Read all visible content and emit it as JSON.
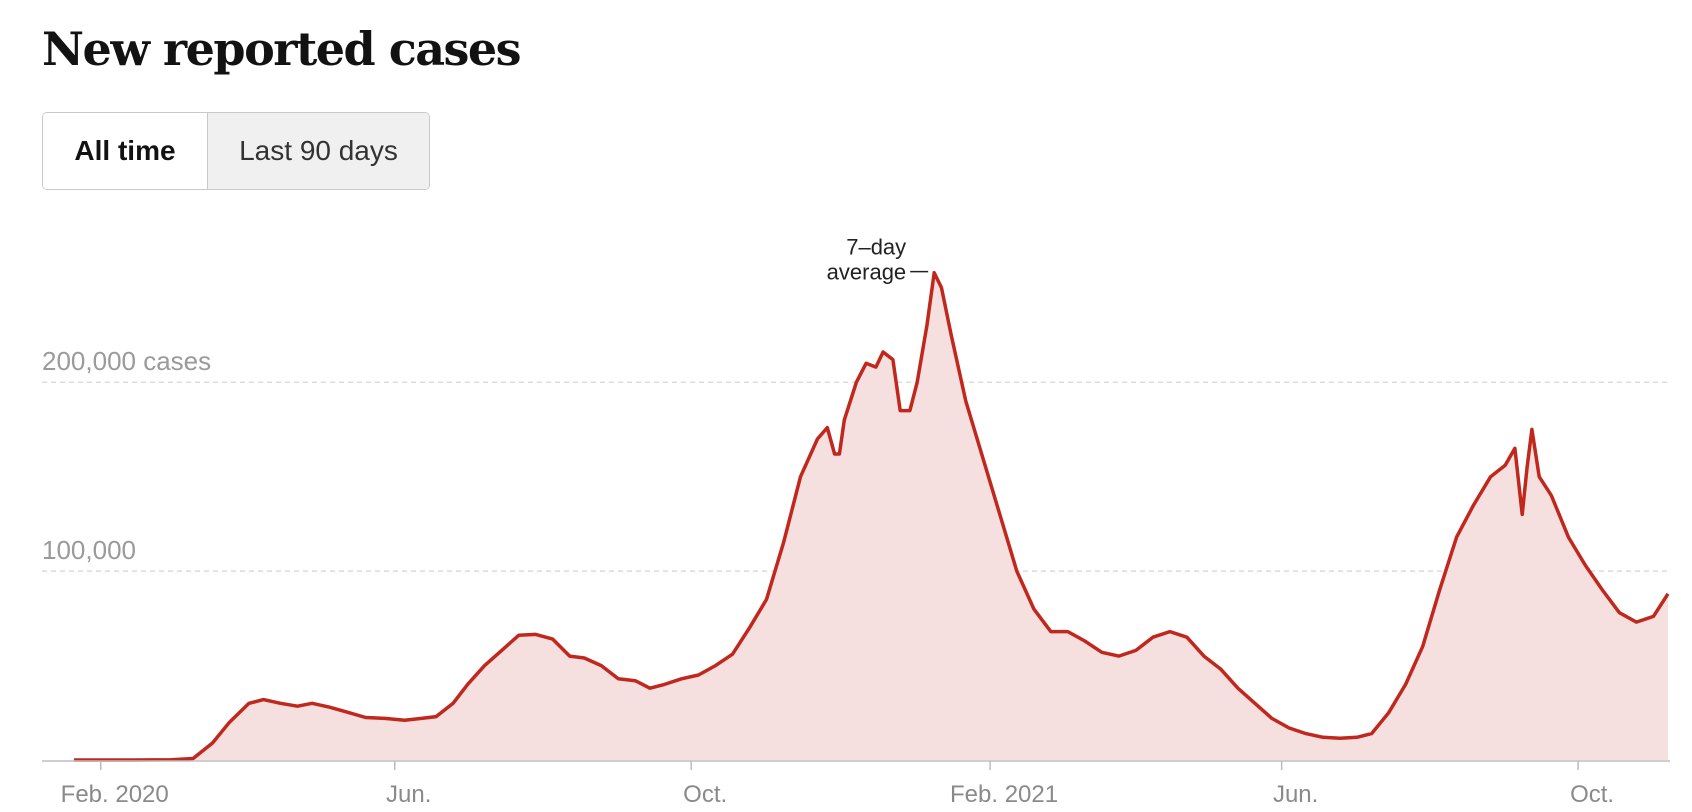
{
  "header": {
    "title": "New reported cases"
  },
  "toggle": {
    "all_time": "All time",
    "last_90_days": "Last 90 days",
    "selected": "All time"
  },
  "colors": {
    "line": "#c0281e",
    "area": "#f6dfdf",
    "grid": "#dcdcdc",
    "axis": "#bdbdbd"
  },
  "chart_data": {
    "type": "area",
    "title": "New reported cases",
    "annotation": {
      "line1": "7–day",
      "line2": "average"
    },
    "y_ticks": [
      {
        "value": 200000,
        "label": "200,000 cases"
      },
      {
        "value": 100000,
        "label": "100,000"
      }
    ],
    "x_ticks": [
      {
        "date": "2020-02-01",
        "label": "Feb. 2020"
      },
      {
        "date": "2020-06-01",
        "label": "Jun."
      },
      {
        "date": "2020-10-01",
        "label": "Oct."
      },
      {
        "date": "2021-02-01",
        "label": "Feb. 2021"
      },
      {
        "date": "2021-06-01",
        "label": "Jun."
      },
      {
        "date": "2021-10-01",
        "label": "Oct."
      }
    ],
    "xlim": [
      "2020-01-21",
      "2021-11-07"
    ],
    "ylim": [
      0,
      270000
    ],
    "grid": true,
    "series": [
      {
        "name": "7–day average",
        "points": [
          [
            "2020-01-21",
            0
          ],
          [
            "2020-02-15",
            0
          ],
          [
            "2020-03-01",
            100
          ],
          [
            "2020-03-10",
            800
          ],
          [
            "2020-03-18",
            9000
          ],
          [
            "2020-03-25",
            20000
          ],
          [
            "2020-04-02",
            30000
          ],
          [
            "2020-04-08",
            32000
          ],
          [
            "2020-04-15",
            30000
          ],
          [
            "2020-04-22",
            28500
          ],
          [
            "2020-04-28",
            30000
          ],
          [
            "2020-05-05",
            28000
          ],
          [
            "2020-05-12",
            25500
          ],
          [
            "2020-05-20",
            22500
          ],
          [
            "2020-05-28",
            22000
          ],
          [
            "2020-06-05",
            21000
          ],
          [
            "2020-06-12",
            22000
          ],
          [
            "2020-06-18",
            23000
          ],
          [
            "2020-06-25",
            30000
          ],
          [
            "2020-07-01",
            40000
          ],
          [
            "2020-07-08",
            50000
          ],
          [
            "2020-07-15",
            58000
          ],
          [
            "2020-07-22",
            66000
          ],
          [
            "2020-07-29",
            66500
          ],
          [
            "2020-08-05",
            64000
          ],
          [
            "2020-08-12",
            55000
          ],
          [
            "2020-08-18",
            54000
          ],
          [
            "2020-08-25",
            50000
          ],
          [
            "2020-09-01",
            43000
          ],
          [
            "2020-09-08",
            42000
          ],
          [
            "2020-09-14",
            38000
          ],
          [
            "2020-09-20",
            40000
          ],
          [
            "2020-09-27",
            43000
          ],
          [
            "2020-10-04",
            45000
          ],
          [
            "2020-10-11",
            50000
          ],
          [
            "2020-10-18",
            56000
          ],
          [
            "2020-10-25",
            70000
          ],
          [
            "2020-11-01",
            85000
          ],
          [
            "2020-11-08",
            115000
          ],
          [
            "2020-11-15",
            150000
          ],
          [
            "2020-11-22",
            170000
          ],
          [
            "2020-11-26",
            176000
          ],
          [
            "2020-11-29",
            162000
          ],
          [
            "2020-12-01",
            162000
          ],
          [
            "2020-12-03",
            180000
          ],
          [
            "2020-12-08",
            200000
          ],
          [
            "2020-12-12",
            210000
          ],
          [
            "2020-12-16",
            208000
          ],
          [
            "2020-12-19",
            216000
          ],
          [
            "2020-12-23",
            212000
          ],
          [
            "2020-12-26",
            185000
          ],
          [
            "2020-12-30",
            185000
          ],
          [
            "2021-01-02",
            200000
          ],
          [
            "2021-01-06",
            230000
          ],
          [
            "2021-01-09",
            258000
          ],
          [
            "2021-01-12",
            250000
          ],
          [
            "2021-01-16",
            225000
          ],
          [
            "2021-01-22",
            190000
          ],
          [
            "2021-01-29",
            160000
          ],
          [
            "2021-02-05",
            130000
          ],
          [
            "2021-02-12",
            100000
          ],
          [
            "2021-02-19",
            80000
          ],
          [
            "2021-02-26",
            68000
          ],
          [
            "2021-03-05",
            68000
          ],
          [
            "2021-03-12",
            63000
          ],
          [
            "2021-03-19",
            57000
          ],
          [
            "2021-03-26",
            55000
          ],
          [
            "2021-04-02",
            58000
          ],
          [
            "2021-04-09",
            65000
          ],
          [
            "2021-04-16",
            68000
          ],
          [
            "2021-04-23",
            65000
          ],
          [
            "2021-04-30",
            55000
          ],
          [
            "2021-05-07",
            48000
          ],
          [
            "2021-05-14",
            38000
          ],
          [
            "2021-05-21",
            30000
          ],
          [
            "2021-05-28",
            22000
          ],
          [
            "2021-06-04",
            17000
          ],
          [
            "2021-06-11",
            14000
          ],
          [
            "2021-06-18",
            12000
          ],
          [
            "2021-06-25",
            11500
          ],
          [
            "2021-07-02",
            12000
          ],
          [
            "2021-07-08",
            14000
          ],
          [
            "2021-07-15",
            25000
          ],
          [
            "2021-07-22",
            40000
          ],
          [
            "2021-07-29",
            60000
          ],
          [
            "2021-08-05",
            90000
          ],
          [
            "2021-08-12",
            118000
          ],
          [
            "2021-08-19",
            135000
          ],
          [
            "2021-08-26",
            150000
          ],
          [
            "2021-09-01",
            156000
          ],
          [
            "2021-09-05",
            165000
          ],
          [
            "2021-09-08",
            130000
          ],
          [
            "2021-09-10",
            155000
          ],
          [
            "2021-09-12",
            175000
          ],
          [
            "2021-09-15",
            150000
          ],
          [
            "2021-09-20",
            140000
          ],
          [
            "2021-09-27",
            118000
          ],
          [
            "2021-10-04",
            103000
          ],
          [
            "2021-10-11",
            90000
          ],
          [
            "2021-10-18",
            78000
          ],
          [
            "2021-10-25",
            73000
          ],
          [
            "2021-11-01",
            76000
          ],
          [
            "2021-11-07",
            88000
          ]
        ]
      }
    ]
  }
}
